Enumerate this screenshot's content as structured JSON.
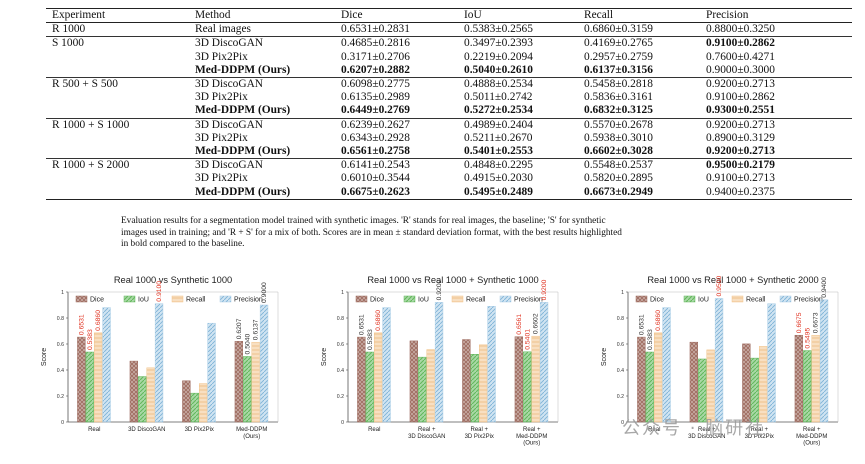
{
  "table": {
    "headers": [
      "Experiment",
      "Method",
      "Dice",
      "IoU",
      "Recall",
      "Precision"
    ],
    "groups": [
      {
        "experiment": "R 1000",
        "rows": [
          {
            "method": "Real images",
            "method_bold": false,
            "values": [
              "0.6531±0.2831",
              "0.5383±0.2565",
              "0.6860±0.3159",
              "0.8800±0.3250"
            ],
            "bold": [
              false,
              false,
              false,
              false
            ]
          }
        ]
      },
      {
        "experiment": "S 1000",
        "rows": [
          {
            "method": "3D DiscoGAN",
            "method_bold": false,
            "values": [
              "0.4685±0.2816",
              "0.3497±0.2393",
              "0.4169±0.2765",
              "0.9100±0.2862"
            ],
            "bold": [
              false,
              false,
              false,
              true
            ]
          },
          {
            "method": "3D Pix2Pix",
            "method_bold": false,
            "values": [
              "0.3171±0.2706",
              "0.2219±0.2094",
              "0.2957±0.2759",
              "0.7600±0.4271"
            ],
            "bold": [
              false,
              false,
              false,
              false
            ]
          },
          {
            "method": "Med-DDPM (Ours)",
            "method_bold": true,
            "values": [
              "0.6207±0.2882",
              "0.5040±0.2610",
              "0.6137±0.3156",
              "0.9000±0.3000"
            ],
            "bold": [
              true,
              true,
              true,
              false
            ]
          }
        ]
      },
      {
        "experiment": "R 500 + S 500",
        "rows": [
          {
            "method": "3D DiscoGAN",
            "method_bold": false,
            "values": [
              "0.6098±0.2775",
              "0.4888±0.2534",
              "0.5458±0.2818",
              "0.9200±0.2713"
            ],
            "bold": [
              false,
              false,
              false,
              false
            ]
          },
          {
            "method": "3D Pix2Pix",
            "method_bold": false,
            "values": [
              "0.6135±0.2989",
              "0.5011±0.2742",
              "0.5836±0.3161",
              "0.9100±0.2862"
            ],
            "bold": [
              false,
              false,
              false,
              false
            ]
          },
          {
            "method": "Med-DDPM (Ours)",
            "method_bold": true,
            "values": [
              "0.6449±0.2769",
              "0.5272±0.2534",
              "0.6832±0.3125",
              "0.9300±0.2551"
            ],
            "bold": [
              true,
              true,
              true,
              true
            ]
          }
        ]
      },
      {
        "experiment": "R 1000 + S 1000",
        "rows": [
          {
            "method": "3D DiscoGAN",
            "method_bold": false,
            "values": [
              "0.6239±0.2627",
              "0.4989±0.2404",
              "0.5570±0.2678",
              "0.9200±0.2713"
            ],
            "bold": [
              false,
              false,
              false,
              false
            ]
          },
          {
            "method": "3D Pix2Pix",
            "method_bold": false,
            "values": [
              "0.6343±0.2928",
              "0.5211±0.2670",
              "0.5938±0.3010",
              "0.8900±0.3129"
            ],
            "bold": [
              false,
              false,
              false,
              false
            ]
          },
          {
            "method": "Med-DDPM (Ours)",
            "method_bold": true,
            "values": [
              "0.6561±0.2758",
              "0.5401±0.2553",
              "0.6602±0.3028",
              "0.9200±0.2713"
            ],
            "bold": [
              true,
              true,
              true,
              true
            ]
          }
        ]
      },
      {
        "experiment": "R 1000 + S 2000",
        "rows": [
          {
            "method": "3D DiscoGAN",
            "method_bold": false,
            "values": [
              "0.6141±0.2543",
              "0.4848±0.2295",
              "0.5548±0.2537",
              "0.9500±0.2179"
            ],
            "bold": [
              false,
              false,
              false,
              true
            ]
          },
          {
            "method": "3D Pix2Pix",
            "method_bold": false,
            "values": [
              "0.6010±0.3544",
              "0.4915±0.2030",
              "0.5820±0.2895",
              "0.9100±0.2713"
            ],
            "bold": [
              false,
              false,
              false,
              false
            ]
          },
          {
            "method": "Med-DDPM (Ours)",
            "method_bold": true,
            "values": [
              "0.6675±0.2623",
              "0.5495±0.2489",
              "0.6673±0.2949",
              "0.9400±0.2375"
            ],
            "bold": [
              true,
              true,
              true,
              false
            ]
          }
        ]
      }
    ]
  },
  "caption": {
    "line1": "Evaluation results for a segmentation model trained with synthetic images. 'R' stands for real images, the baseline; 'S' for synthetic",
    "line2": "images used in training; and 'R + S' for a mix of both. Scores are in mean ± standard deviation format, with the best results highlighted",
    "line3": "in bold compared to the baseline."
  },
  "watermark": "公众号 · 脑研社",
  "colors": {
    "dice": "#9e6b5f",
    "iou": "#63b85c",
    "recall": "#f2c58d",
    "precision": "#a9cde6",
    "highlight": "#e0301e",
    "label": "#333333"
  },
  "chart_data": [
    {
      "type": "bar",
      "title": "Real 1000 vs Synthetic 1000",
      "ylabel": "Score",
      "ylim": [
        0,
        1.0
      ],
      "yticks": [
        "0",
        "0.2",
        "0.4",
        "0.6",
        "0.8",
        "1"
      ],
      "legend": [
        "Dice",
        "IoU",
        "Recall",
        "Precision"
      ],
      "categories": [
        [
          "Real"
        ],
        [
          "3D DiscoGAN"
        ],
        [
          "3D Pix2Pix"
        ],
        [
          "Med-DDPM",
          "(Ours)"
        ]
      ],
      "series": [
        {
          "name": "Dice",
          "values": [
            0.6531,
            0.4685,
            0.3171,
            0.6207
          ]
        },
        {
          "name": "IoU",
          "values": [
            0.5383,
            0.3497,
            0.2219,
            0.504
          ]
        },
        {
          "name": "Recall",
          "values": [
            0.686,
            0.4169,
            0.2957,
            0.6137
          ]
        },
        {
          "name": "Precision",
          "values": [
            0.88,
            0.91,
            0.76,
            0.9
          ]
        }
      ],
      "labels": [
        {
          "cat": 0,
          "series": 0,
          "text": "0.6531",
          "red": true
        },
        {
          "cat": 0,
          "series": 1,
          "text": "0.5383",
          "red": true
        },
        {
          "cat": 0,
          "series": 2,
          "text": "0.6860",
          "red": true
        },
        {
          "cat": 1,
          "series": 3,
          "text": "0.9100",
          "red": true
        },
        {
          "cat": 3,
          "series": 0,
          "text": "0.6207",
          "red": false
        },
        {
          "cat": 3,
          "series": 1,
          "text": "0.5040",
          "red": false
        },
        {
          "cat": 3,
          "series": 2,
          "text": "0.6137",
          "red": false
        },
        {
          "cat": 3,
          "series": 3,
          "text": "0.9000",
          "red": false
        }
      ]
    },
    {
      "type": "bar",
      "title": "Real 1000 vs Real 1000 + Synthetic 1000",
      "ylabel": "Score",
      "ylim": [
        0,
        1.0
      ],
      "yticks": [
        "0",
        "0.2",
        "0.4",
        "0.6",
        "0.8",
        "1"
      ],
      "legend": [
        "Dice",
        "IoU",
        "Recall",
        "Precision"
      ],
      "categories": [
        [
          "Real"
        ],
        [
          "Real +",
          "3D DiscoGAN"
        ],
        [
          "Real +",
          "3D Pix2Pix"
        ],
        [
          "Real +",
          "Med-DDPM",
          "(Ours)"
        ]
      ],
      "series": [
        {
          "name": "Dice",
          "values": [
            0.6531,
            0.6239,
            0.6343,
            0.6561
          ]
        },
        {
          "name": "IoU",
          "values": [
            0.5383,
            0.4989,
            0.5211,
            0.5401
          ]
        },
        {
          "name": "Recall",
          "values": [
            0.686,
            0.557,
            0.5938,
            0.6602
          ]
        },
        {
          "name": "Precision",
          "values": [
            0.88,
            0.92,
            0.89,
            0.92
          ]
        }
      ],
      "labels": [
        {
          "cat": 0,
          "series": 0,
          "text": "0.6531",
          "red": false
        },
        {
          "cat": 0,
          "series": 1,
          "text": "0.5383",
          "red": false
        },
        {
          "cat": 0,
          "series": 2,
          "text": "0.6860",
          "red": true
        },
        {
          "cat": 1,
          "series": 3,
          "text": "0.9200",
          "red": false
        },
        {
          "cat": 3,
          "series": 0,
          "text": "0.6561",
          "red": true
        },
        {
          "cat": 3,
          "series": 1,
          "text": "0.5401",
          "red": true
        },
        {
          "cat": 3,
          "series": 2,
          "text": "0.6602",
          "red": false
        },
        {
          "cat": 3,
          "series": 3,
          "text": "0.9200",
          "red": true
        }
      ]
    },
    {
      "type": "bar",
      "title": "Real 1000 vs Real 1000 + Synthetic 2000",
      "ylabel": "Score",
      "ylim": [
        0,
        1.0
      ],
      "yticks": [
        "0",
        "0.2",
        "0.4",
        "0.6",
        "0.8",
        "1"
      ],
      "legend": [
        "Dice",
        "IoU",
        "Recall",
        "Precision"
      ],
      "categories": [
        [
          "Real"
        ],
        [
          "Real +",
          "3D DiscoGAN"
        ],
        [
          "Real +",
          "3D Pix2Pix"
        ],
        [
          "Real +",
          "Med-DDPM",
          "(Ours)"
        ]
      ],
      "series": [
        {
          "name": "Dice",
          "values": [
            0.6531,
            0.6141,
            0.601,
            0.6675
          ]
        },
        {
          "name": "IoU",
          "values": [
            0.5383,
            0.4848,
            0.4915,
            0.5495
          ]
        },
        {
          "name": "Recall",
          "values": [
            0.686,
            0.5548,
            0.582,
            0.6673
          ]
        },
        {
          "name": "Precision",
          "values": [
            0.88,
            0.95,
            0.91,
            0.94
          ]
        }
      ],
      "labels": [
        {
          "cat": 0,
          "series": 0,
          "text": "0.6531",
          "red": false
        },
        {
          "cat": 0,
          "series": 1,
          "text": "0.5383",
          "red": false
        },
        {
          "cat": 0,
          "series": 2,
          "text": "0.6860",
          "red": true
        },
        {
          "cat": 1,
          "series": 3,
          "text": "0.9500",
          "red": true
        },
        {
          "cat": 3,
          "series": 0,
          "text": "0.6675",
          "red": true
        },
        {
          "cat": 3,
          "series": 1,
          "text": "0.5495",
          "red": true
        },
        {
          "cat": 3,
          "series": 2,
          "text": "0.6673",
          "red": false
        },
        {
          "cat": 3,
          "series": 3,
          "text": "0.9400",
          "red": false
        }
      ]
    }
  ]
}
